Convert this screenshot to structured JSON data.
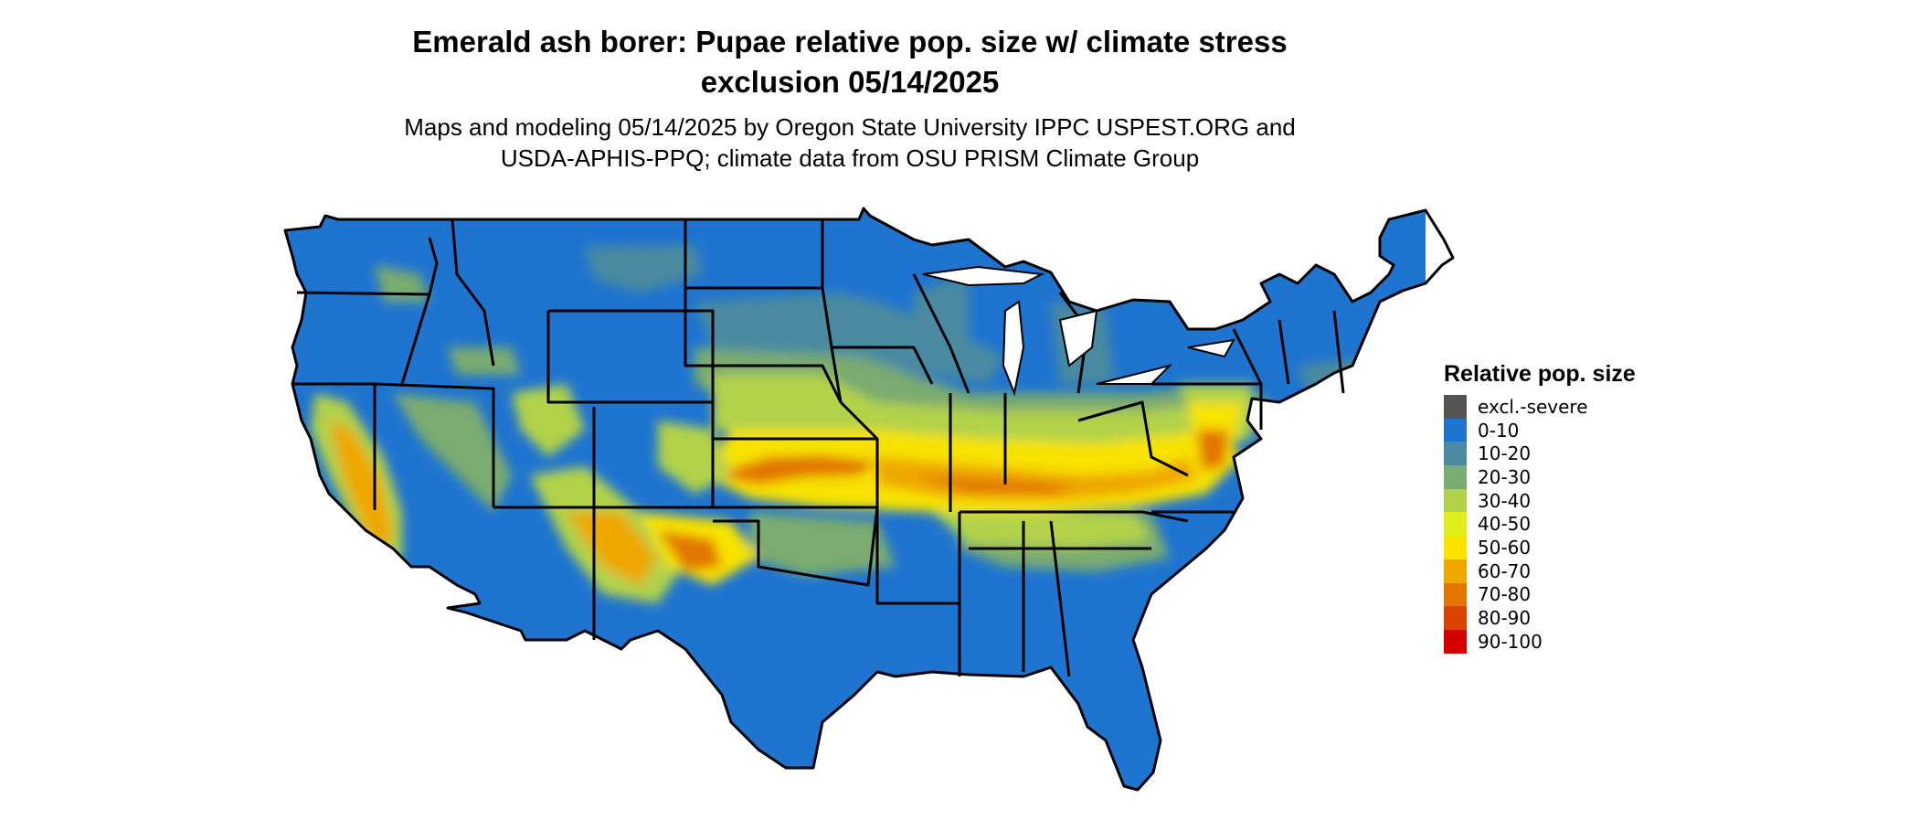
{
  "title": "Emerald ash borer: Pupae relative pop. size w/ climate stress\nexclusion 05/14/2025",
  "subtitle": "Maps and modeling 05/14/2025 by Oregon State University IPPC USPEST.ORG and\nUSDA-APHIS-PPQ; climate data from OSU PRISM Climate Group",
  "legend": {
    "title": "Relative pop. size",
    "items": [
      {
        "label": "excl.-severe",
        "color": "#545454"
      },
      {
        "label": "0-10",
        "color": "#1f74d0"
      },
      {
        "label": "10-20",
        "color": "#4a8aa0"
      },
      {
        "label": "20-30",
        "color": "#7aab70"
      },
      {
        "label": "30-40",
        "color": "#b2d24a"
      },
      {
        "label": "40-50",
        "color": "#e0ef1c"
      },
      {
        "label": "50-60",
        "color": "#f7e200"
      },
      {
        "label": "60-70",
        "color": "#eea800"
      },
      {
        "label": "70-80",
        "color": "#e27600"
      },
      {
        "label": "80-90",
        "color": "#dd4300"
      },
      {
        "label": "90-100",
        "color": "#d20000"
      }
    ]
  },
  "map": {
    "region": "conterminous-united-states",
    "water_color": "#ffffff",
    "border_color": "#000000"
  }
}
